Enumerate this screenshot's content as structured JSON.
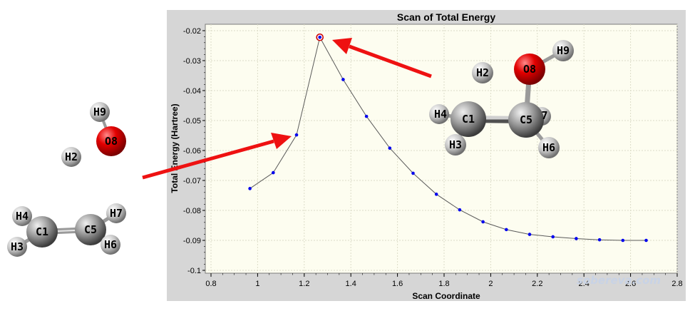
{
  "chart_data": {
    "type": "line",
    "title": "Scan of Total Energy",
    "xlabel": "Scan Coordinate",
    "ylabel": "Total Energy (Hartree)",
    "xlim": [
      0.8,
      2.8
    ],
    "ylim": [
      -0.1,
      -0.02
    ],
    "xticks": [
      "0.8",
      "1",
      "1.2",
      "1.4",
      "1.6",
      "1.8",
      "2",
      "2.2",
      "2.4",
      "2.6",
      "2.8"
    ],
    "yticks": [
      "-0.02",
      "-0.03",
      "-0.04",
      "-0.05",
      "-0.06",
      "-0.07",
      "-0.08",
      "-0.09",
      "-0.1"
    ],
    "grid": true,
    "legend": "none",
    "series": [
      {
        "x": [
          0.967,
          1.067,
          1.167,
          1.267,
          1.367,
          1.467,
          1.567,
          1.667,
          1.767,
          1.867,
          1.967,
          2.067,
          2.167,
          2.267,
          2.367,
          2.467,
          2.567,
          2.667
        ],
        "y": [
          -0.0727,
          -0.0674,
          -0.0548,
          -0.0222,
          -0.0363,
          -0.0486,
          -0.0592,
          -0.0676,
          -0.0746,
          -0.0798,
          -0.0838,
          -0.0864,
          -0.088,
          -0.0888,
          -0.0894,
          -0.0898,
          -0.09,
          -0.09
        ],
        "highlight_index": 3
      }
    ],
    "colors": {
      "line": "#5a5a5a",
      "marker": "#0000ee",
      "highlight": "#cc0000",
      "plot_bg": "#fdfdf0",
      "frame_bg": "#d6d6d6"
    }
  },
  "molecules": {
    "left": [
      "H9",
      "O8",
      "H2",
      "H4",
      "C1",
      "C5",
      "H7",
      "H3",
      "H6"
    ],
    "right": [
      "H9",
      "O8",
      "H2",
      "H4",
      "C1",
      "C5",
      "7",
      "H3",
      "H6"
    ]
  },
  "watermark": "sobereva.com"
}
